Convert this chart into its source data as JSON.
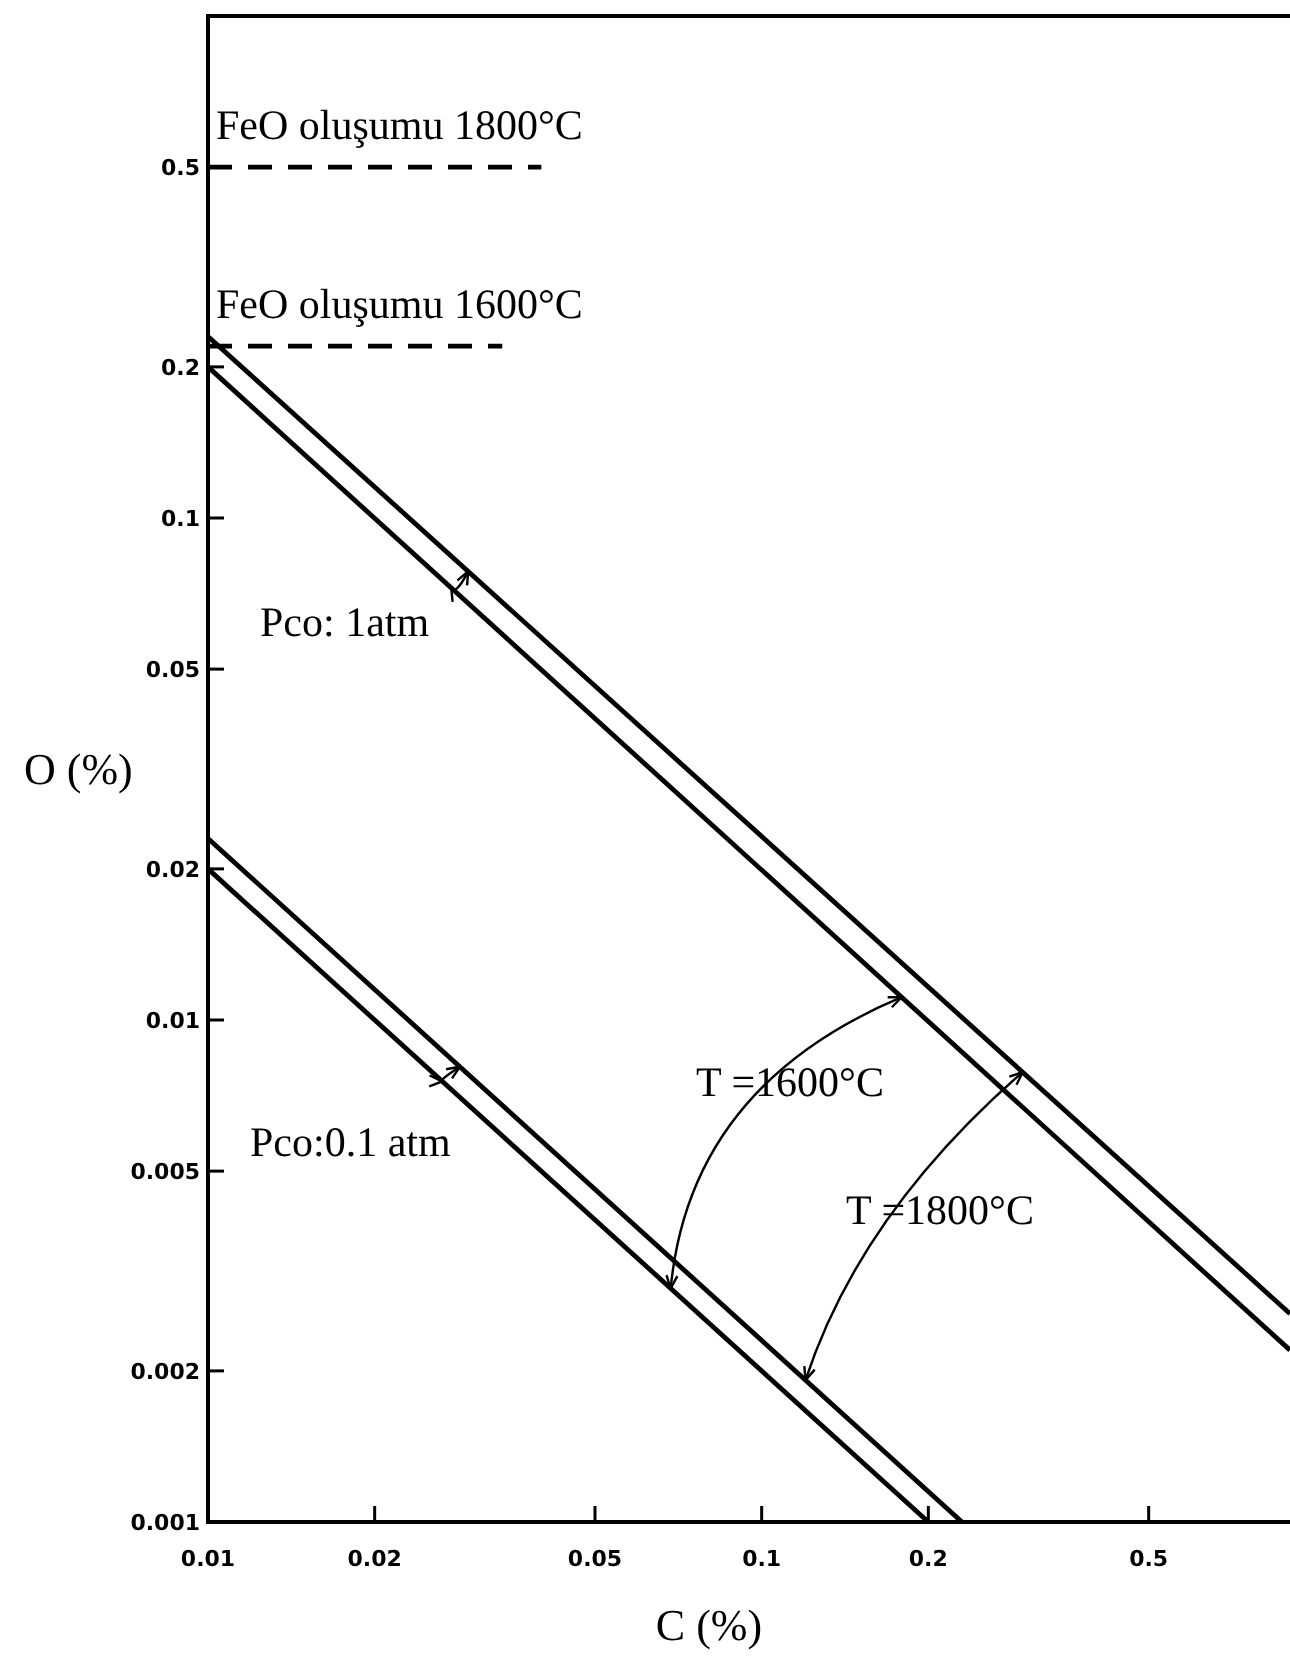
{
  "chart_data": {
    "type": "line",
    "xlabel": "C (%)",
    "ylabel": "O (%)",
    "log": "xy",
    "grid": false,
    "marker": "none",
    "xlim": [
      0.01,
      0.9
    ],
    "ylim": [
      0.001,
      1
    ],
    "xticks": [
      0.01,
      0.02,
      0.05,
      0.1,
      0.2,
      0.5
    ],
    "yticks": [
      0.001,
      0.002,
      0.005,
      0.01,
      0.02,
      0.05,
      0.1,
      0.2,
      0.5
    ],
    "series": [
      {
        "color": "#000000",
        "x": [
          0.01,
          0.9
        ],
        "values": [
          0.23,
          0.0026
        ],
        "line_style": "solid"
      },
      {
        "color": "#000000",
        "x": [
          0.01,
          0.9
        ],
        "values": [
          0.2,
          0.0022
        ],
        "line_style": "solid"
      },
      {
        "color": "#000000",
        "x": [
          0.01,
          0.23
        ],
        "values": [
          0.023,
          0.001
        ],
        "line_style": "solid"
      },
      {
        "color": "#000000",
        "x": [
          0.01,
          0.2
        ],
        "values": [
          0.02,
          0.001
        ],
        "line_style": "solid"
      },
      {
        "name": "FeO oluşumu 1800°C",
        "color": "#000000",
        "x": [
          0.01,
          0.04
        ],
        "values": [
          0.5,
          0.5
        ],
        "line_style": "dashed"
      },
      {
        "name": "FeO oluşumu 1600°C",
        "color": "#000000",
        "x": [
          0.01,
          0.034
        ],
        "values": [
          0.22,
          0.22
        ],
        "line_style": "dashed"
      }
    ],
    "annotations": [
      "T =1600°C",
      "T =1800°C",
      "Pco: 1atm",
      "Pco:0.1 atm"
    ]
  }
}
